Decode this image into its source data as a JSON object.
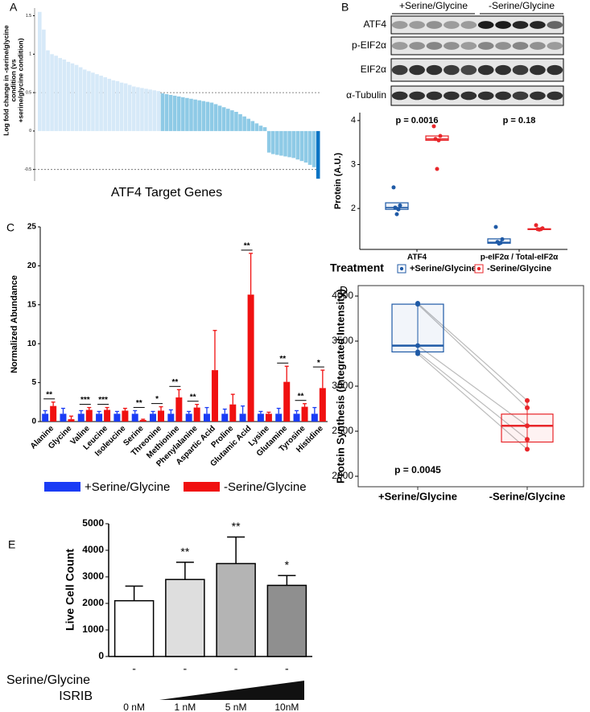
{
  "panels": [
    "A",
    "B",
    "C",
    "D",
    "E"
  ],
  "blot": {
    "groups": [
      "+Serine/Glycine",
      "-Serine/Glycine"
    ],
    "rows": [
      "ATF4",
      "p-EIF2α",
      "EIF2α",
      "α-Tubulin"
    ]
  },
  "chart_data": [
    {
      "type": "waterfall",
      "ylabel": [
        "Log fold change in -serine/glycine",
        "condition (vs",
        "+serine/glycine condition)"
      ],
      "xlabel": "ATF4 Target Genes",
      "ylim": [
        -0.65,
        1.6
      ],
      "yticks": [
        -0.5,
        0,
        0.5,
        1,
        1.5
      ],
      "hlines": [
        0.5,
        -0.5
      ],
      "series": [
        {
          "color": "#d6e9f8",
          "values": [
            1.55,
            1.32,
            1.05,
            1.0,
            0.98,
            0.95,
            0.93,
            0.9,
            0.88,
            0.86,
            0.83,
            0.8,
            0.78,
            0.76,
            0.74,
            0.72,
            0.7,
            0.68,
            0.66,
            0.65,
            0.63,
            0.62,
            0.6,
            0.58,
            0.57,
            0.56,
            0.55,
            0.54,
            0.53,
            0.52
          ]
        },
        {
          "color": "#8ecae6",
          "values": [
            0.49,
            0.48,
            0.47,
            0.46,
            0.45,
            0.44,
            0.43,
            0.42,
            0.41,
            0.4,
            0.39,
            0.38,
            0.37,
            0.35,
            0.33,
            0.31,
            0.29,
            0.27,
            0.25,
            0.22,
            0.19,
            0.16,
            0.13,
            0.1,
            0.07,
            0.05,
            -0.28,
            -0.3,
            -0.31,
            -0.32,
            -0.33,
            -0.34,
            -0.35,
            -0.37,
            -0.39,
            -0.41,
            -0.44,
            -0.47
          ]
        },
        {
          "color": "#0b74c4",
          "values": [
            -0.62
          ]
        }
      ]
    },
    {
      "type": "box",
      "ylabel": "Protein (A.U.)",
      "ylim": [
        1.07,
        4.18
      ],
      "yticks": [
        2,
        3,
        4
      ],
      "categories": [
        "ATF4",
        "p-eIF2α / Total-eIF2α"
      ],
      "annotations": [
        "p = 0.0016",
        "p = 0.18"
      ],
      "legend_title": "Treatment",
      "series": [
        {
          "name": "+Serine/Glycine",
          "color": "#1f5aa6",
          "boxes": [
            {
              "q1": 1.98,
              "median": 2.02,
              "q3": 2.13
            },
            {
              "q1": 1.21,
              "median": 1.23,
              "q3": 1.31
            }
          ],
          "points": [
            [
              2.48,
              2.07,
              2.02,
              1.98,
              1.87
            ],
            [
              1.58,
              1.3,
              1.24,
              1.22,
              1.2
            ]
          ]
        },
        {
          "name": "-Serine/Glycine",
          "color": "#e8262a",
          "boxes": [
            {
              "q1": 3.55,
              "median": 3.58,
              "q3": 3.65
            },
            {
              "q1": 1.52,
              "median": 1.53,
              "q3": 1.54
            }
          ],
          "points": [
            [
              3.87,
              3.65,
              3.58,
              3.55,
              2.9
            ],
            [
              1.62,
              1.55,
              1.53,
              1.53,
              1.52
            ]
          ]
        }
      ]
    },
    {
      "type": "bar",
      "ylabel": "Normalized Abundance",
      "ylim": [
        0,
        25
      ],
      "yticks": [
        0,
        5,
        10,
        15,
        20,
        25
      ],
      "categories": [
        "Alanine",
        "Glycine",
        "Valine",
        "Leucine",
        "Isoleucine",
        "Serine",
        "Threonine",
        "Methionine",
        "Phenylalanine",
        "Aspartic Acid",
        "Proline",
        "Glutamic Acid",
        "Lysine",
        "Glutamine",
        "Tyrosine",
        "Histidine"
      ],
      "annotations": [
        "**",
        null,
        "***",
        "***",
        null,
        "**",
        "*",
        "**",
        "**",
        null,
        null,
        "**",
        null,
        "**",
        "**",
        "*"
      ],
      "series": [
        {
          "name": "+Serine/Glycine",
          "color": "#1a3cf5",
          "values": [
            1,
            1,
            1,
            1,
            1,
            1,
            1,
            1,
            1,
            1,
            1,
            1,
            1,
            1,
            1,
            1
          ],
          "errors": [
            0.4,
            0.7,
            0.4,
            0.3,
            0.3,
            0.4,
            0.3,
            0.5,
            0.3,
            0.8,
            0.6,
            1.0,
            0.3,
            0.7,
            0.4,
            0.8
          ]
        },
        {
          "name": "-Serine/Glycine",
          "color": "#f01010",
          "values": [
            2.0,
            0.3,
            1.5,
            1.5,
            1.4,
            0.2,
            1.4,
            3.1,
            1.8,
            6.6,
            2.2,
            16.3,
            1.0,
            5.1,
            1.9,
            4.3
          ],
          "errors": [
            0.5,
            0.4,
            0.3,
            0.3,
            0.3,
            0.1,
            0.5,
            1.0,
            0.4,
            5.1,
            1.3,
            5.3,
            0.2,
            2.0,
            0.4,
            2.3
          ]
        }
      ]
    },
    {
      "type": "paired_box",
      "ylabel": "Protein Synthesis (Integrated Intensity)",
      "ylim": [
        1884,
        4116
      ],
      "yticks": [
        2000,
        2500,
        3000,
        3500,
        4000
      ],
      "categories": [
        "+Serine/Glycine",
        "-Serine/Glycine"
      ],
      "colors": [
        "#1f5aa6",
        "#e8262a"
      ],
      "annotation": "p = 0.0045",
      "boxes": [
        {
          "low": 3360,
          "q1": 3380,
          "median": 3450,
          "q3": 3910,
          "high": 3920
        },
        {
          "low": 2300,
          "q1": 2380,
          "median": 2560,
          "q3": 2690,
          "high": 2840
        }
      ],
      "points": [
        [
          3920,
          3910,
          3450,
          3380,
          3360
        ],
        [
          2840,
          2760,
          2560,
          2410,
          2300
        ]
      ]
    },
    {
      "type": "bar",
      "ylabel": "Live Cell Count",
      "ylim": [
        0,
        5000
      ],
      "yticks": [
        0,
        1000,
        2000,
        3000,
        4000,
        5000
      ],
      "categories": [
        "0 nM",
        "1 nM",
        "5 nM",
        "10nM"
      ],
      "values": [
        2100,
        2900,
        3500,
        2680
      ],
      "errors": [
        550,
        650,
        1000,
        370
      ],
      "colors": [
        "#ffffff",
        "#dedede",
        "#b4b4b4",
        "#8f8f8f"
      ],
      "annotations": [
        null,
        "**",
        "**",
        "*"
      ],
      "rows": [
        {
          "label": "Serine/Glycine",
          "values": [
            "-",
            "-",
            "-",
            "-"
          ]
        },
        {
          "label": "ISRIB"
        }
      ]
    }
  ]
}
